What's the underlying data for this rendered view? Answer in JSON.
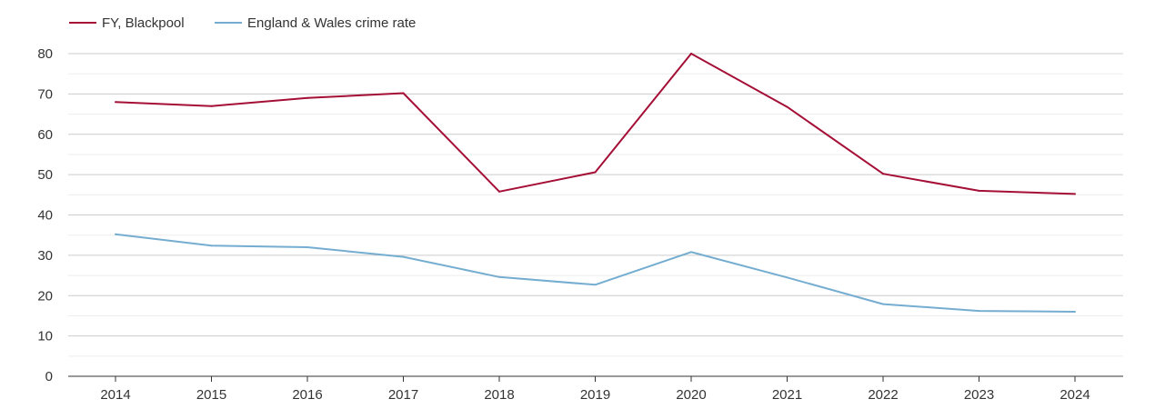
{
  "chart_data": {
    "type": "line",
    "categories": [
      "2014",
      "2015",
      "2016",
      "2017",
      "2018",
      "2019",
      "2020",
      "2021",
      "2022",
      "2023",
      "2024"
    ],
    "series": [
      {
        "name": "FY, Blackpool",
        "color": "#a50f36",
        "values": [
          68,
          67,
          69,
          70.2,
          45.8,
          50.6,
          80,
          66.8,
          50.2,
          46,
          45.2
        ]
      },
      {
        "name": "England & Wales crime rate",
        "color": "#75add1",
        "values": [
          35.2,
          32.4,
          32,
          29.6,
          24.6,
          22.7,
          30.8,
          24.5,
          17.9,
          16.2,
          16
        ]
      }
    ],
    "yticks": [
      "0",
      "10",
      "20",
      "30",
      "40",
      "50",
      "60",
      "70",
      "80"
    ],
    "ylim": [
      0,
      80
    ],
    "grid": true,
    "legend_position": "top-left"
  }
}
